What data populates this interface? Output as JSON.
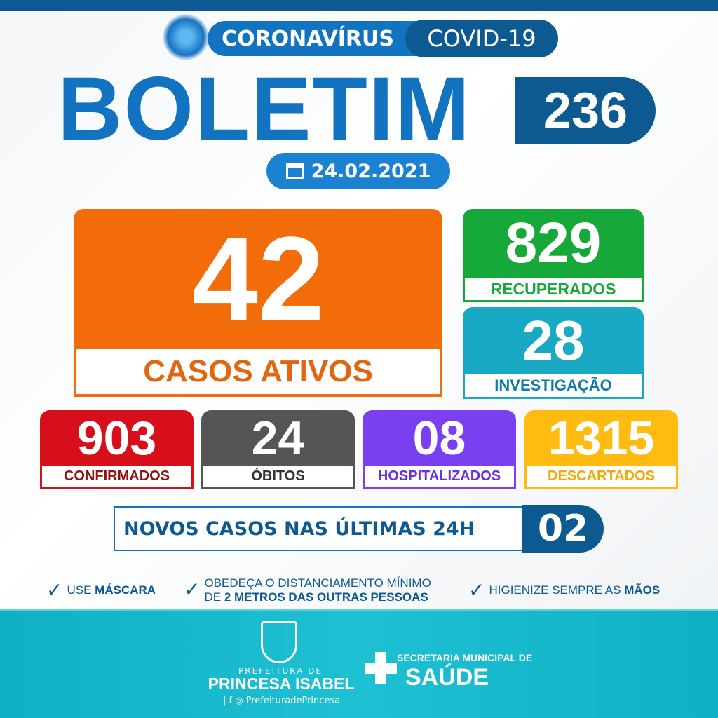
{
  "header": {
    "tag": "CORONAVÍRUS",
    "tag2": "COVID-19",
    "title": "BOLETIM",
    "number": "236",
    "date": "24.02.2021"
  },
  "stats": {
    "active": {
      "value": "42",
      "label": "CASOS ATIVOS"
    },
    "recovered": {
      "value": "829",
      "label": "RECUPERADOS"
    },
    "investigation": {
      "value": "28",
      "label": "INVESTIGAÇÃO"
    },
    "confirmed": {
      "value": "903",
      "label": "CONFIRMADOS"
    },
    "deaths": {
      "value": "24",
      "label": "ÓBITOS"
    },
    "hospitalized": {
      "value": "08",
      "label": "HOSPITALIZADOS"
    },
    "discarded": {
      "value": "1315",
      "label": "DESCARTADOS"
    }
  },
  "new_cases": {
    "label": "NOVOS CASOS NAS ÚLTIMAS 24H",
    "value": "02"
  },
  "tips": [
    {
      "pre": "USE ",
      "bold": "MÁSCARA"
    },
    {
      "line1": "OBEDEÇA O DISTANCIAMENTO MÍNIMO",
      "pre": "DE ",
      "bold": "2 METROS DAS OUTRAS PESSOAS"
    },
    {
      "pre": "HIGIENIZE SEMPRE AS ",
      "bold": "MÃOS"
    }
  ],
  "footer": {
    "pref_line1": "PREFEITURA DE",
    "pref_line2": "PRINCESA ISABEL",
    "social": "PrefeituradePrincesa",
    "sec_line1": "SECRETARIA MUNICIPAL DE",
    "sec_line2": "SAÚDE"
  },
  "colors": {
    "blue": "#1273c0",
    "dark_blue": "#0d5a93",
    "orange": "#f26d0a",
    "green": "#17a83a",
    "teal": "#1aa9c4",
    "red": "#d60f1a",
    "gray": "#555555",
    "purple": "#7a3ff0",
    "yellow": "#ffbb10"
  }
}
